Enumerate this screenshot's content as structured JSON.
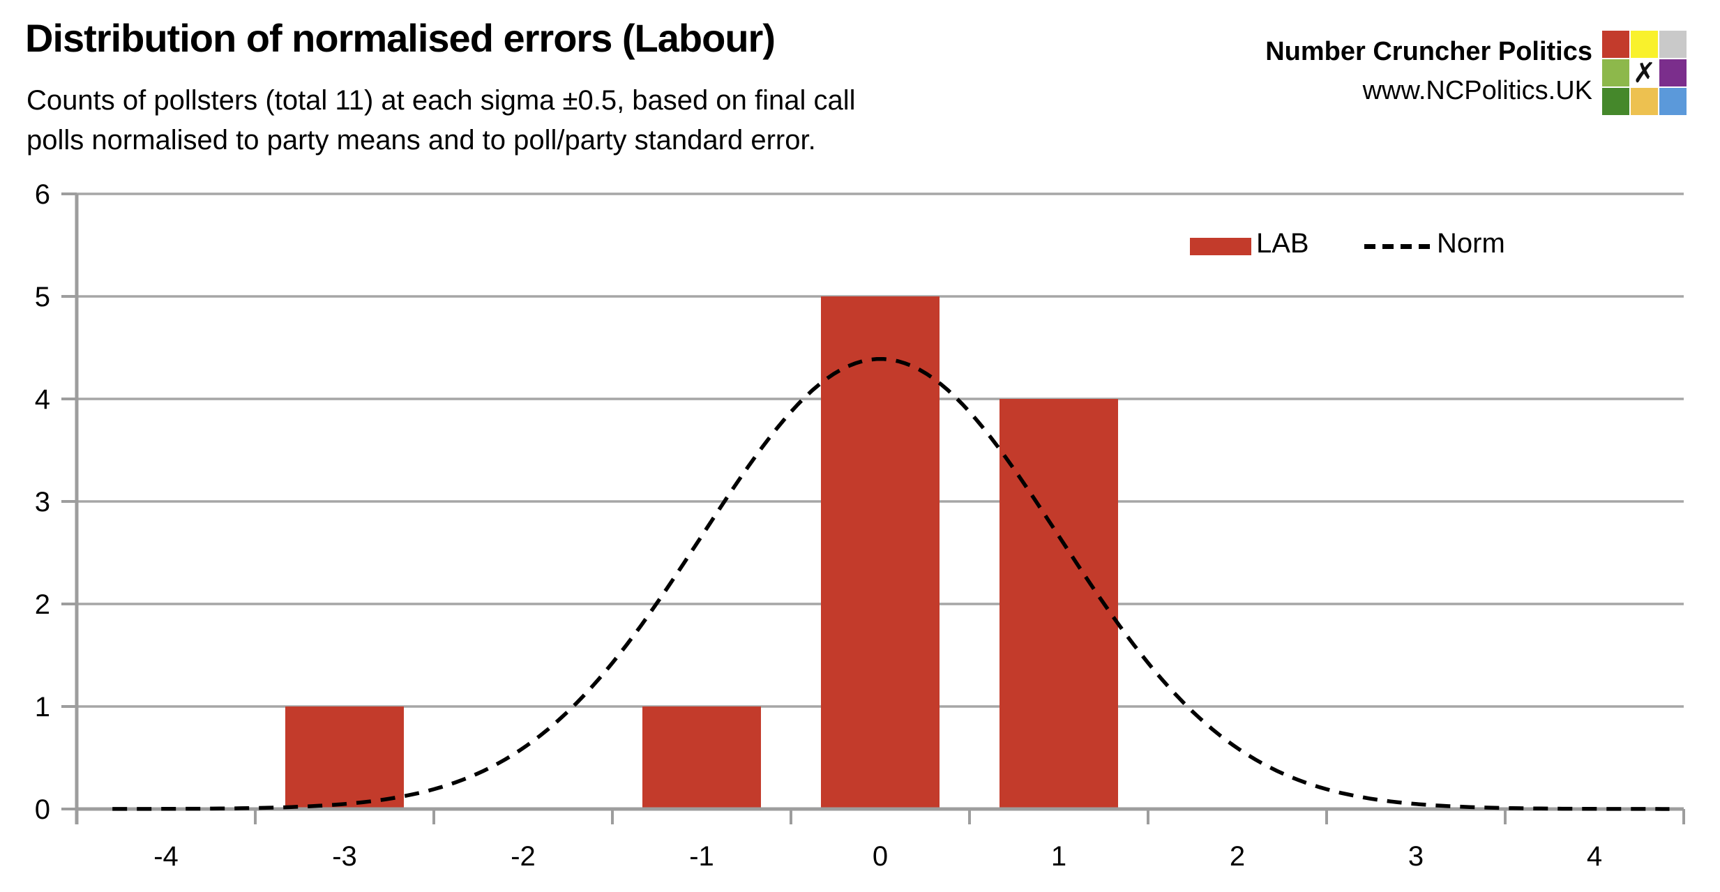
{
  "header": {
    "title": "Distribution of normalised errors (Labour)",
    "subtitle_line1": "Counts of pollsters (total 11) at each sigma ±0.5, based on final call",
    "subtitle_line2": "polls normalised to party means and to poll/party standard error."
  },
  "brand": {
    "name": "Number Cruncher Politics",
    "url": "www.NCPolitics.UK",
    "logo_x_glyph": "✗",
    "logo_grid_colors": [
      [
        "#c33b2c",
        "#f9f12c",
        "#c9c9c9"
      ],
      [
        "#8db84b",
        "#ffffff",
        "#7b2e8c"
      ],
      [
        "#45882b",
        "#edc150",
        "#5b99da"
      ]
    ]
  },
  "chart_data": {
    "type": "bar",
    "title": "Distribution of normalised errors (Labour)",
    "categories": [
      -4,
      -3,
      -2,
      -1,
      0,
      1,
      2,
      3,
      4
    ],
    "series": [
      {
        "name": "LAB",
        "type": "bar",
        "color": "#c33b2b",
        "values": [
          0,
          1,
          0,
          1,
          5,
          4,
          0,
          0,
          0
        ]
      },
      {
        "name": "Norm",
        "type": "line",
        "line_style": "dashed",
        "color": "#000000",
        "curve": {
          "shape": "normal_pdf_scaled",
          "mean": 0,
          "sigma": 1,
          "peak": 4.39,
          "x_range": [
            -4.3,
            4.45
          ]
        }
      }
    ],
    "xlabel": "",
    "ylabel": "",
    "ylim": [
      0,
      6
    ],
    "yticks": [
      0,
      1,
      2,
      3,
      4,
      5,
      6
    ],
    "grid": "horizontal-only",
    "legend": {
      "position": "top-right",
      "entries": [
        "LAB",
        "Norm"
      ]
    },
    "colors": {
      "bar": "#c33b2b",
      "curve": "#000000",
      "axis": "#9d9d9d",
      "gridline": "#a6a6a6",
      "text": "#000000"
    }
  }
}
